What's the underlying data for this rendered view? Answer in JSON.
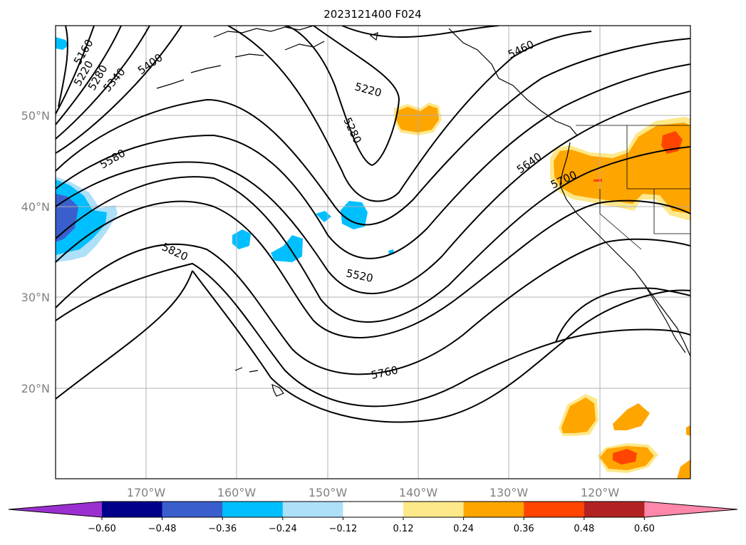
{
  "title": "2023121400 F024",
  "map": {
    "lat_labels": [
      "50°N",
      "40°N",
      "30°N",
      "20°N"
    ],
    "lon_labels": [
      "170°W",
      "160°W",
      "150°W",
      "140°W",
      "130°W",
      "120°W"
    ],
    "contour_labels": [
      "5160",
      "5220",
      "5280",
      "5340",
      "5400",
      "5220",
      "5280",
      "5460",
      "5580",
      "5640",
      "5700",
      "5820",
      "5520",
      "5760"
    ]
  },
  "colorbar": {
    "ticks": [
      "−0.60",
      "−0.48",
      "−0.36",
      "−0.24",
      "−0.12",
      "0.12",
      "0.24",
      "0.36",
      "0.48",
      "0.60"
    ],
    "colors": [
      "#9b30d0",
      "#00008b",
      "#3a5fcd",
      "#00bfff",
      "#aee0f8",
      "#ffffff",
      "#fde88a",
      "#ffa500",
      "#ff4500",
      "#b22222",
      "#ff88aa"
    ]
  }
}
